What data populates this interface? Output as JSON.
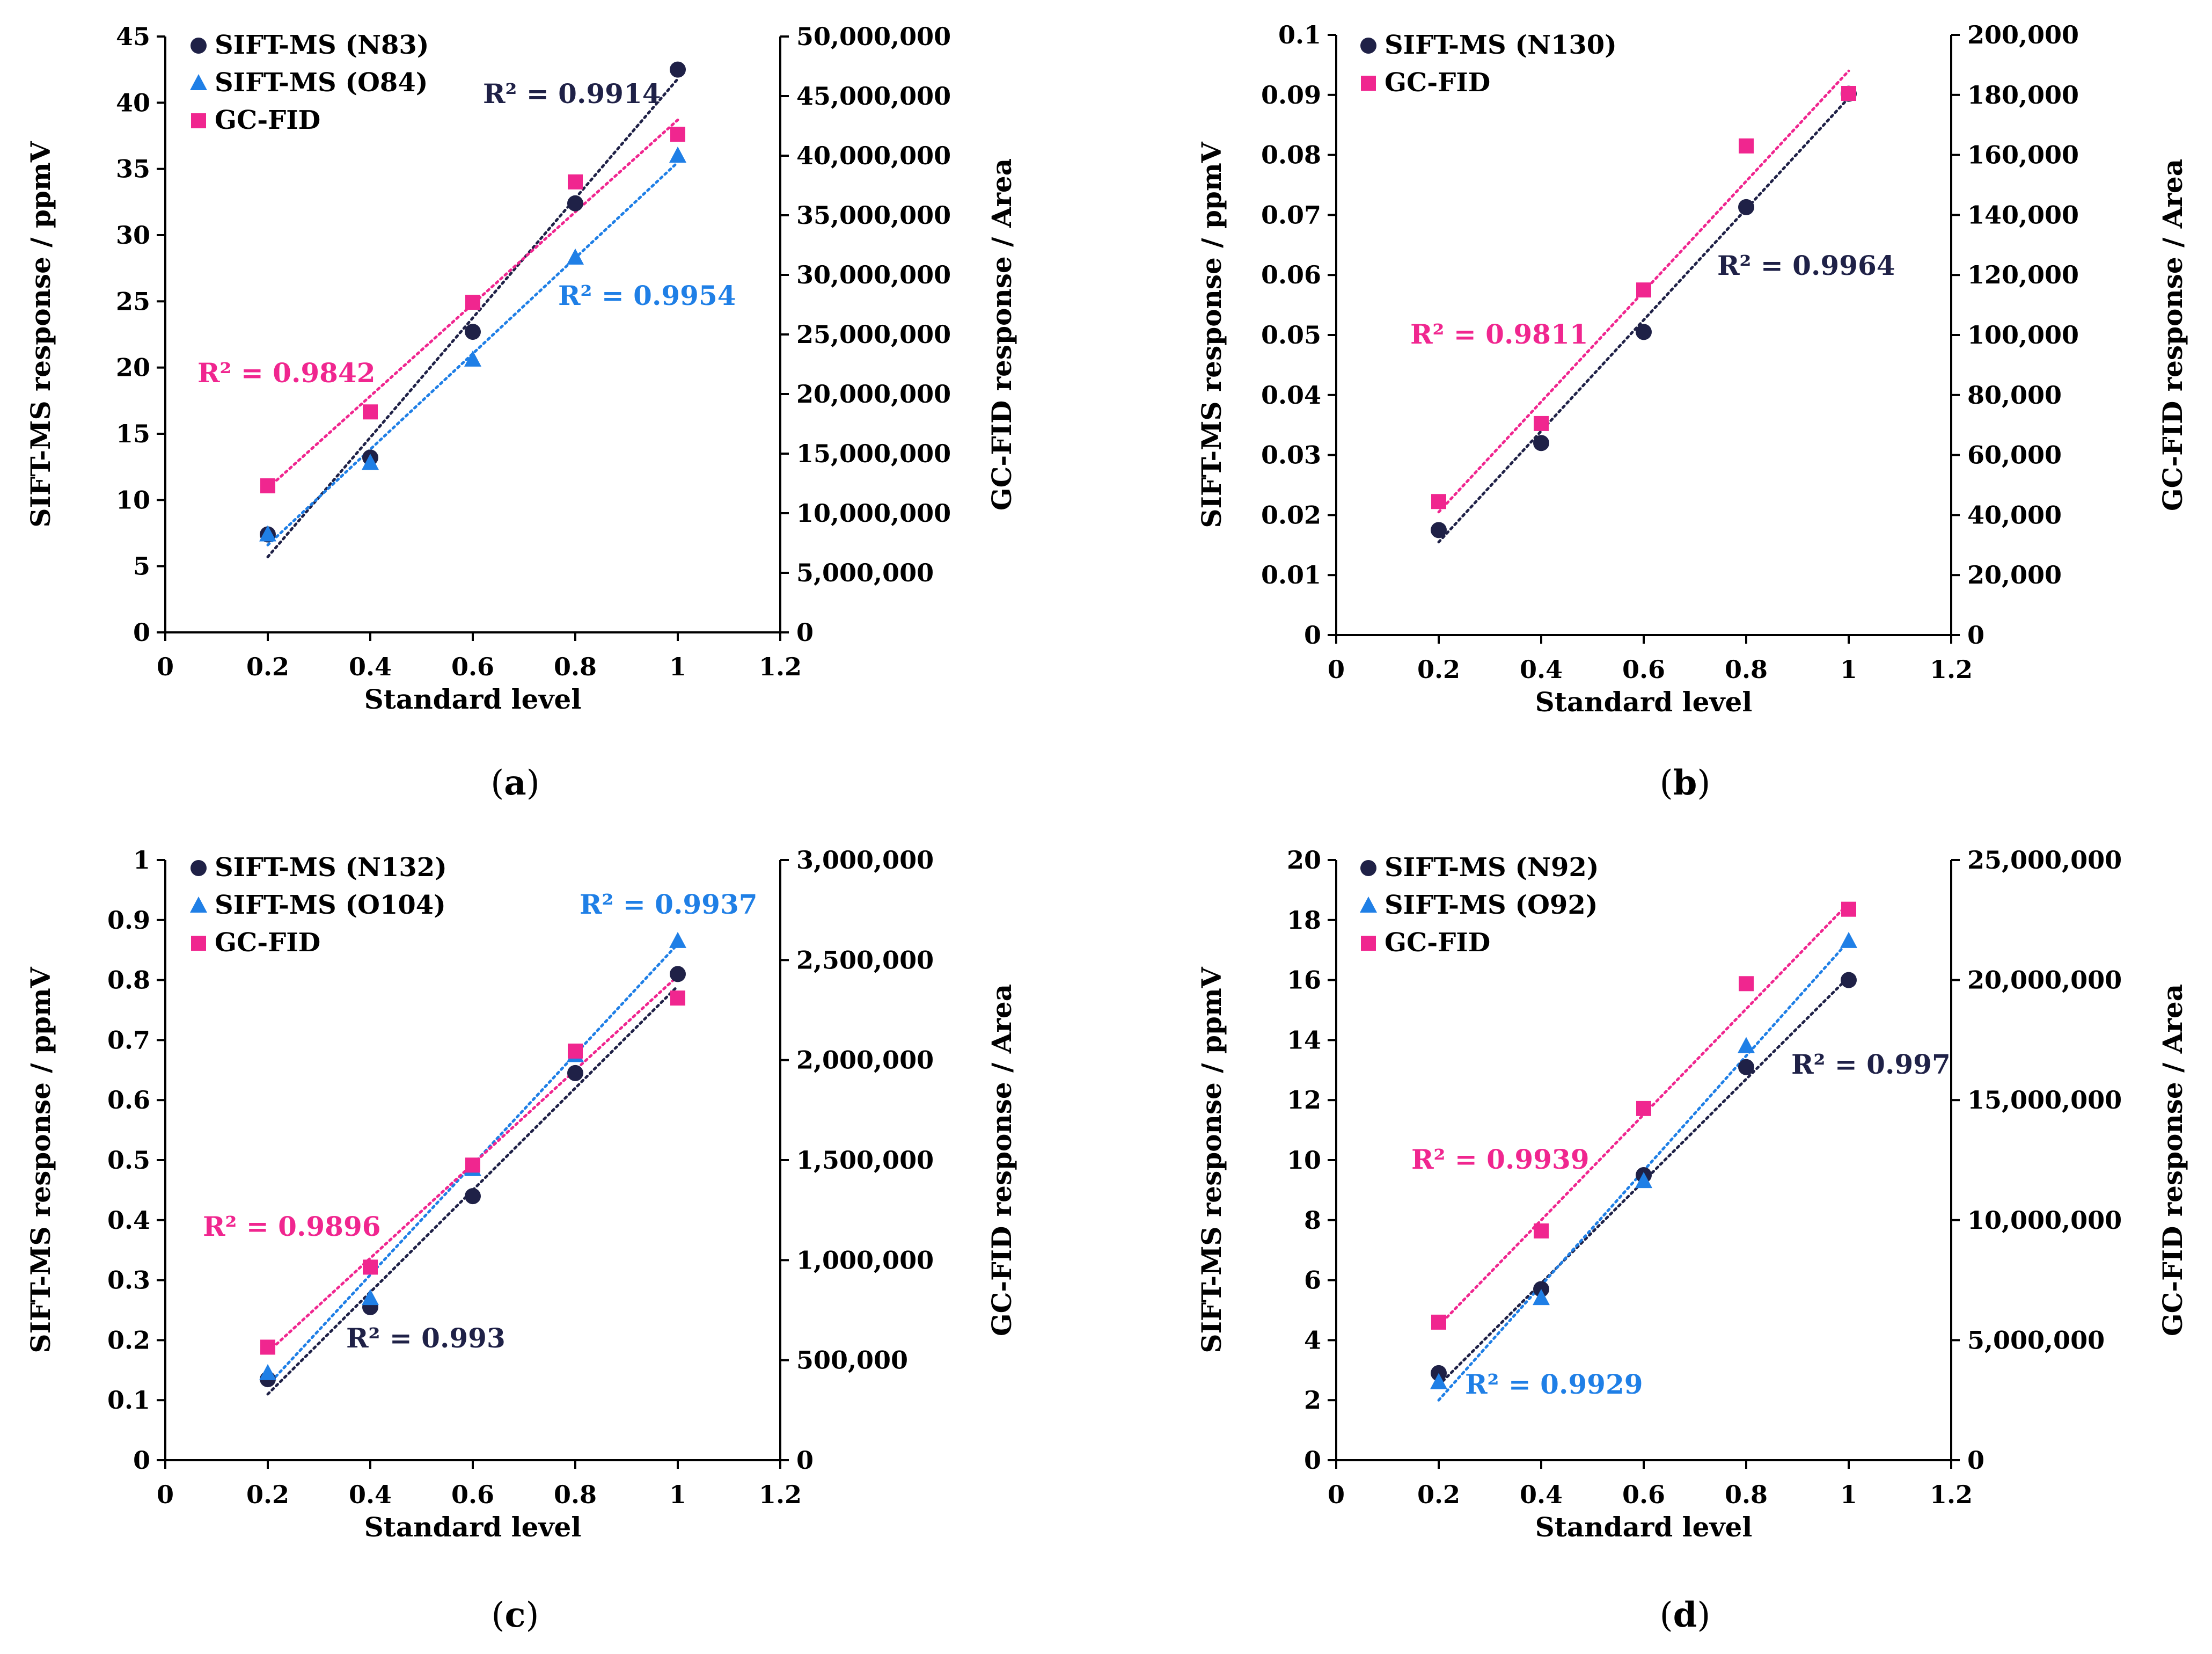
{
  "colors": {
    "navy": "#1f2147",
    "blue": "#1f7fe6",
    "pink": "#f0268f",
    "axis": "#000000"
  },
  "chart_data": [
    {
      "type": "scatter",
      "panel": "(a)",
      "xlabel": "Standard level",
      "ylabel": "SIFT-MS response / ppmV",
      "y2label": "GC-FID response / Area",
      "xlim": [
        0,
        1.2
      ],
      "xticks": [
        "0",
        "0.2",
        "0.4",
        "0.6",
        "0.8",
        "1",
        "1.2"
      ],
      "ylim": [
        0,
        45
      ],
      "yticks": [
        "0",
        "5",
        "10",
        "15",
        "20",
        "25",
        "30",
        "35",
        "40",
        "45"
      ],
      "y2lim": [
        0,
        50000000
      ],
      "y2ticks": [
        "0",
        "5,000,000",
        "10,000,000",
        "15,000,000",
        "20,000,000",
        "25,000,000",
        "30,000,000",
        "35,000,000",
        "40,000,000",
        "45,000,000",
        "50,000,000"
      ],
      "legend": [
        "SIFT-MS (N83)",
        "SIFT-MS (O84)",
        "GC-FID"
      ],
      "x": [
        0.2,
        0.4,
        0.6,
        0.8,
        1.0
      ],
      "series": [
        {
          "name": "SIFT-MS (N83)",
          "marker": "circle",
          "color": "navy",
          "axis": "left",
          "values": [
            7.4,
            13.2,
            22.7,
            32.4,
            42.5
          ],
          "fit": [
            0.2,
            5.7,
            1.0,
            41.8
          ],
          "r2": "R² = 0.9914"
        },
        {
          "name": "SIFT-MS (O84)",
          "marker": "triangle",
          "color": "blue",
          "axis": "left",
          "values": [
            7.4,
            12.8,
            20.6,
            28.3,
            36.0
          ],
          "fit": [
            0.2,
            6.6,
            1.0,
            35.5
          ],
          "r2": "R² = 0.9954"
        },
        {
          "name": "GC-FID",
          "marker": "square",
          "color": "pink",
          "axis": "right",
          "values": [
            12300000,
            18500000,
            27700000,
            37800000,
            41800000
          ],
          "fit": [
            0.2,
            12100000,
            1.0,
            43000000
          ],
          "r2": "R² = 0.9842"
        }
      ]
    },
    {
      "type": "scatter",
      "panel": "(b)",
      "xlabel": "Standard level",
      "ylabel": "SIFT-MS response / ppmV",
      "y2label": "GC-FID response / Area",
      "xlim": [
        0,
        1.2
      ],
      "xticks": [
        "0",
        "0.2",
        "0.4",
        "0.6",
        "0.8",
        "1",
        "1.2"
      ],
      "ylim": [
        0,
        0.1
      ],
      "yticks": [
        "0",
        "0.01",
        "0.02",
        "0.03",
        "0.04",
        "0.05",
        "0.06",
        "0.07",
        "0.08",
        "0.09",
        "0.1"
      ],
      "y2lim": [
        0,
        200000
      ],
      "y2ticks": [
        "0",
        "20,000",
        "40,000",
        "60,000",
        "80,000",
        "100,000",
        "120,000",
        "140,000",
        "160,000",
        "180,000",
        "200,000"
      ],
      "legend": [
        "SIFT-MS (N130)",
        "GC-FID"
      ],
      "x": [
        0.2,
        0.4,
        0.6,
        0.8,
        1.0
      ],
      "series": [
        {
          "name": "SIFT-MS (N130)",
          "marker": "circle",
          "color": "navy",
          "axis": "left",
          "values": [
            0.0175,
            0.032,
            0.0505,
            0.0713,
            0.0902
          ],
          "fit": [
            0.2,
            0.0155,
            1.0,
            0.0895
          ],
          "r2": "R² = 0.9964"
        },
        {
          "name": "GC-FID",
          "marker": "square",
          "color": "pink",
          "axis": "right",
          "values": [
            44500,
            70500,
            115000,
            163000,
            180500
          ],
          "fit": [
            0.2,
            41000,
            1.0,
            188000
          ],
          "r2": "R² = 0.9811"
        }
      ]
    },
    {
      "type": "scatter",
      "panel": "(c)",
      "xlabel": "Standard level",
      "ylabel": "SIFT-MS response / ppmV",
      "y2label": "GC-FID response / Area",
      "xlim": [
        0,
        1.2
      ],
      "xticks": [
        "0",
        "0.2",
        "0.4",
        "0.6",
        "0.8",
        "1",
        "1.2"
      ],
      "ylim": [
        0,
        1
      ],
      "yticks": [
        "0",
        "0.1",
        "0.2",
        "0.3",
        "0.4",
        "0.5",
        "0.6",
        "0.7",
        "0.8",
        "0.9",
        "1"
      ],
      "y2lim": [
        0,
        3000000
      ],
      "y2ticks": [
        "0",
        "500,000",
        "1,000,000",
        "1,500,000",
        "2,000,000",
        "2,500,000",
        "3,000,000"
      ],
      "legend": [
        "SIFT-MS (N132)",
        "SIFT-MS (O104)",
        "GC-FID"
      ],
      "x": [
        0.2,
        0.4,
        0.6,
        0.8,
        1.0
      ],
      "series": [
        {
          "name": "SIFT-MS (N132)",
          "marker": "circle",
          "color": "navy",
          "axis": "left",
          "values": [
            0.135,
            0.255,
            0.44,
            0.645,
            0.81
          ],
          "fit": [
            0.2,
            0.11,
            1.0,
            0.79
          ],
          "r2": "R² = 0.993"
        },
        {
          "name": "SIFT-MS (O104)",
          "marker": "triangle",
          "color": "blue",
          "axis": "left",
          "values": [
            0.145,
            0.27,
            0.485,
            0.675,
            0.865
          ],
          "fit": [
            0.2,
            0.125,
            1.0,
            0.86
          ],
          "r2": "R² = 0.9937"
        },
        {
          "name": "GC-FID",
          "marker": "square",
          "color": "pink",
          "axis": "right",
          "values": [
            565000,
            965000,
            1475000,
            2045000,
            2310000
          ],
          "fit": [
            0.2,
            540000,
            1.0,
            2420000
          ],
          "r2": "R² = 0.9896"
        }
      ]
    },
    {
      "type": "scatter",
      "panel": "(d)",
      "xlabel": "Standard level",
      "ylabel": "SIFT-MS response / ppmV",
      "y2label": "GC-FID response / Area",
      "xlim": [
        0,
        1.2
      ],
      "xticks": [
        "0",
        "0.2",
        "0.4",
        "0.6",
        "0.8",
        "1",
        "1.2"
      ],
      "ylim": [
        0,
        20
      ],
      "yticks": [
        "0",
        "2",
        "4",
        "6",
        "8",
        "10",
        "12",
        "14",
        "16",
        "18",
        "20"
      ],
      "y2lim": [
        0,
        25000000
      ],
      "y2ticks": [
        "0",
        "5,000,000",
        "10,000,000",
        "15,000,000",
        "20,000,000",
        "25,000,000"
      ],
      "legend": [
        "SIFT-MS (N92)",
        "SIFT-MS (O92)",
        "GC-FID"
      ],
      "x": [
        0.2,
        0.4,
        0.6,
        0.8,
        1.0
      ],
      "series": [
        {
          "name": "SIFT-MS (N92)",
          "marker": "circle",
          "color": "navy",
          "axis": "left",
          "values": [
            2.9,
            5.7,
            9.5,
            13.1,
            16.0
          ],
          "fit": [
            0.2,
            2.5,
            1.0,
            16.1
          ],
          "r2": "R² = 0.997"
        },
        {
          "name": "SIFT-MS (O92)",
          "marker": "triangle",
          "color": "blue",
          "axis": "left",
          "values": [
            2.6,
            5.4,
            9.3,
            13.8,
            17.3
          ],
          "fit": [
            0.2,
            2.0,
            1.0,
            17.3
          ],
          "r2": "R² = 0.9929"
        },
        {
          "name": "GC-FID",
          "marker": "square",
          "color": "pink",
          "axis": "right",
          "values": [
            5750000,
            9550000,
            14650000,
            19850000,
            22950000
          ],
          "fit": [
            0.2,
            5600000,
            1.0,
            23200000
          ],
          "r2": "R² = 0.9939"
        }
      ]
    }
  ]
}
